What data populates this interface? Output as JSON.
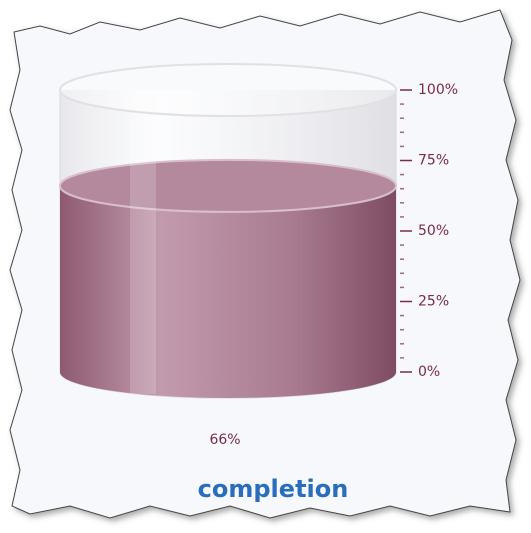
{
  "chart_data": {
    "type": "cylinder",
    "title": "completion",
    "values": [
      66
    ],
    "value_labels": [
      "66%"
    ],
    "color": "#a87a90",
    "ylim": [
      0,
      100
    ],
    "yticks": [
      {
        "value": 0,
        "label": "0%"
      },
      {
        "value": 25,
        "label": "25%"
      },
      {
        "value": 50,
        "label": "50%"
      },
      {
        "value": 75,
        "label": "75%"
      },
      {
        "value": 100,
        "label": "100%"
      }
    ]
  }
}
